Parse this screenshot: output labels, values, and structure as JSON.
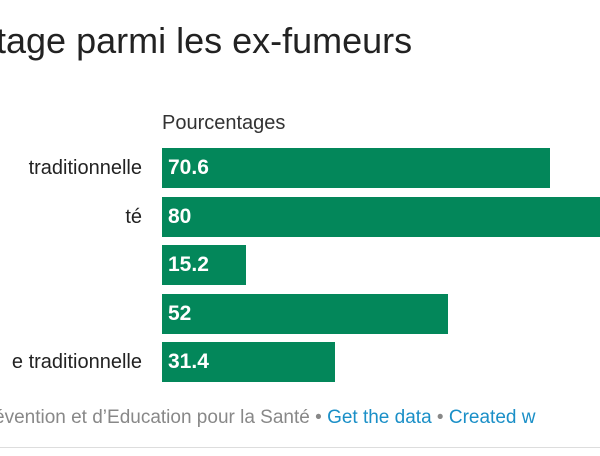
{
  "title": "tage parmi les ex-fumeurs",
  "chart_data": {
    "type": "bar",
    "orientation": "horizontal",
    "column_header": "Pourcentages",
    "categories": [
      "traditionnelle",
      "té",
      "",
      "",
      "e traditionnelle"
    ],
    "values": [
      70.6,
      80,
      15.2,
      52,
      31.4
    ],
    "value_labels": [
      "70.6",
      "80",
      "15.2",
      "52",
      "31.4"
    ],
    "xlim": [
      0,
      80
    ],
    "bar_color": "#03875a",
    "grid": false
  },
  "footer": {
    "source_text": "évention et d’Education pour la Santé",
    "get_data_link": "Get the data",
    "created_with_link": "Created w",
    "separator": "•"
  },
  "colors": {
    "bar": "#03875a",
    "link": "#1a8fc7",
    "footer_text": "#888888"
  }
}
